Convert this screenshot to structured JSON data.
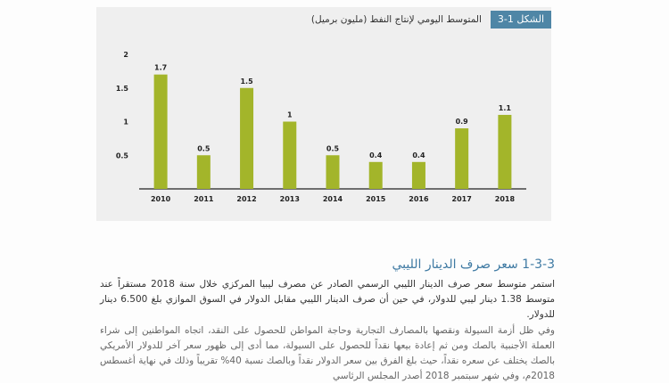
{
  "figure": {
    "label": "الشكل 1-3",
    "title": "المتوسط اليومي لإنتاج النفط (مليون برميل)"
  },
  "chart_data": {
    "type": "bar",
    "categories": [
      "2010",
      "2011",
      "2012",
      "2013",
      "2014",
      "2015",
      "2016",
      "2017",
      "2018"
    ],
    "values": [
      1.7,
      0.5,
      1.5,
      1,
      0.5,
      0.4,
      0.4,
      0.9,
      1.1
    ],
    "value_labels": [
      "1.7",
      "0.5",
      "1.5",
      "1",
      "0.5",
      "0.4",
      "0.4",
      "0.9",
      "1.1"
    ],
    "y_ticks": [
      "0.5",
      "1",
      "1.5",
      "2"
    ],
    "ylim": [
      0,
      2
    ],
    "bar_color": "#a3b52a",
    "grid": false
  },
  "section": {
    "heading": "1-3-3 سعر صرف الدينار الليبي"
  },
  "paragraphs": {
    "p1": "استمر متوسط سعر صرف الدينار الليبي الرسمي الصادر عن مصرف ليبيا المركزي خلال سنة 2018 مستقراً عند متوسط 1.38 دينار ليبي للدولار، في حين أن صرف الدينار الليبي مقابل الدولار في السوق الموازي بلغ 6.500 دينار للدولار.",
    "p2": "وفي ظل أزمة السيولة ونقصها بالمصارف التجارية وحاجة المواطن للحصول على النقد، اتجاه المواطنين إلى شراء العملة الأجنبية بالصك ومن ثم إعادة بيعها نقداً للحصول على السيولة، مما أدى إلى ظهور سعر آخر للدولار الأمريكي بالصك يختلف عن سعره نقداً، حيث بلغ الفرق بين سعر الدولار نقداً وبالصك نسبة 40% تقريباً وذلك في نهاية أغسطس 2018م، وفي شهر سبتمبر 2018 أصدر المجلس الرئاسي"
  }
}
